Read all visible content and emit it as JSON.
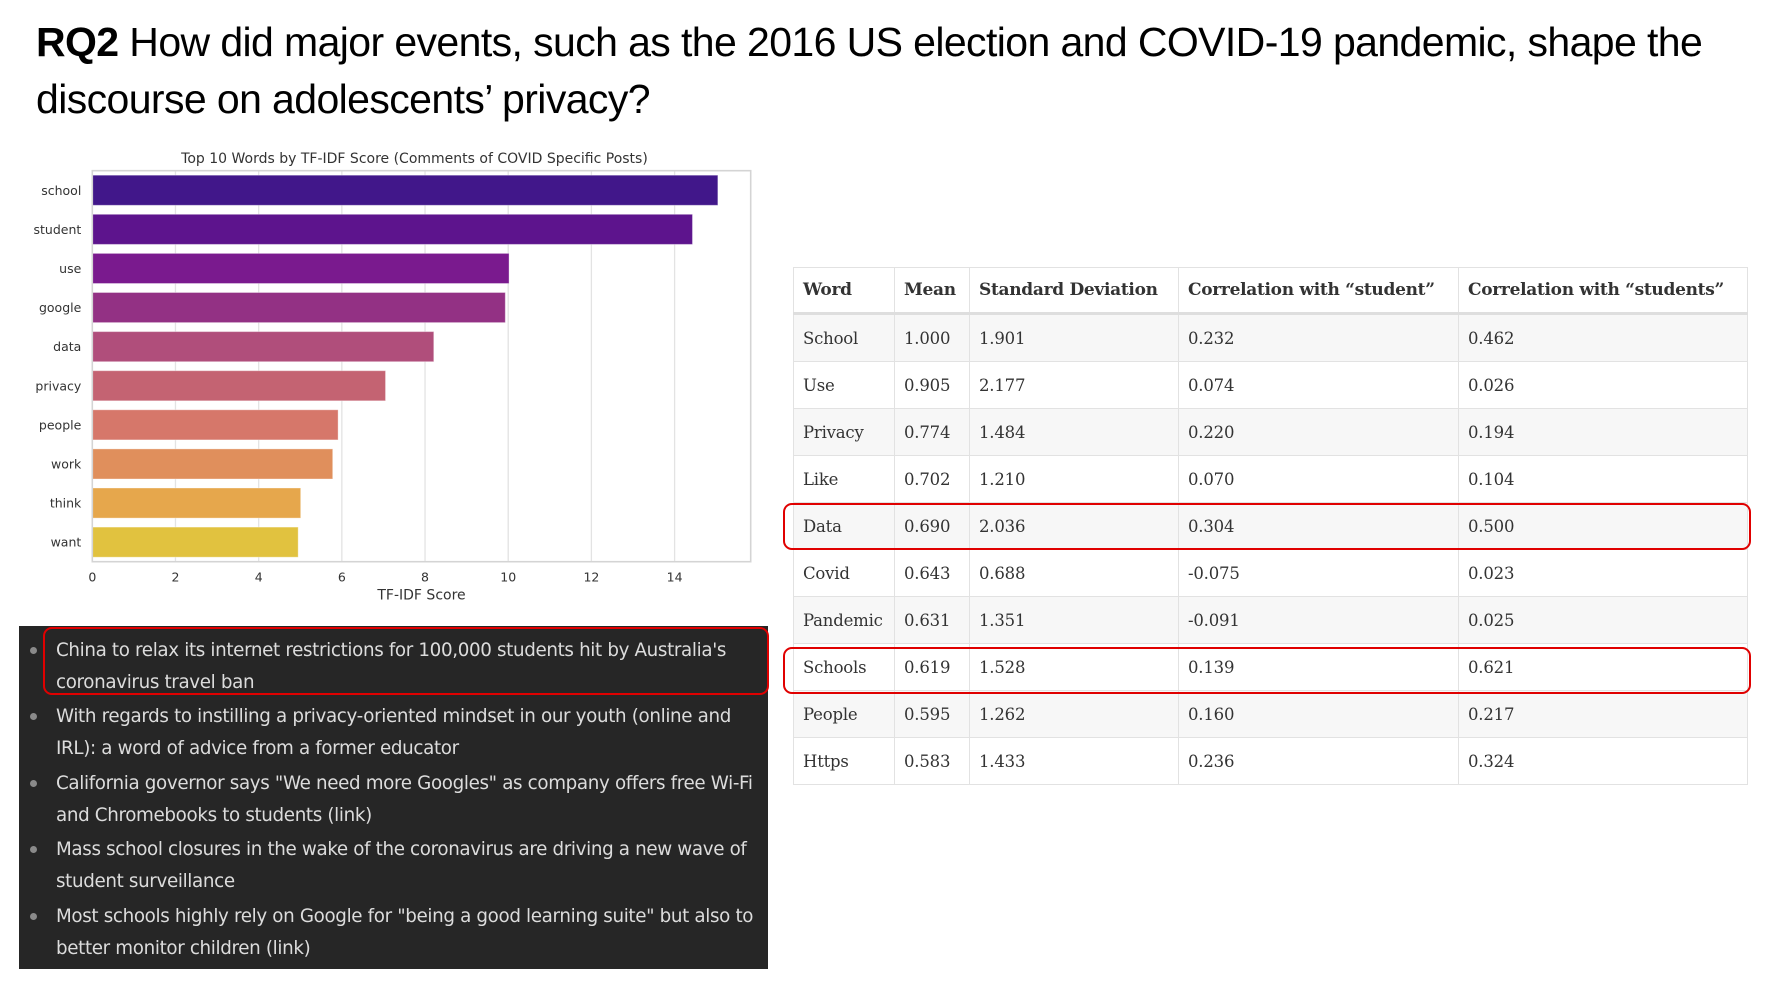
{
  "slide": {
    "title_prefix": "RQ2",
    "title_text": " How did major events, such as the 2016 US election and COVID-19 pandemic, shape the discourse on adolescents’ privacy?"
  },
  "chart_data": {
    "type": "bar",
    "orientation": "horizontal",
    "title": "Top 10 Words by TF-IDF Score (Comments of COVID Specific Posts)",
    "xlabel": "TF-IDF Score",
    "ylabel": "",
    "categories": [
      "school",
      "student",
      "use",
      "google",
      "data",
      "privacy",
      "people",
      "work",
      "think",
      "want"
    ],
    "values": [
      15.04,
      14.43,
      10.02,
      9.93,
      8.21,
      7.05,
      5.91,
      5.78,
      5.01,
      4.95
    ],
    "colors": [
      "#41178a",
      "#5d148d",
      "#7a1a8e",
      "#933184",
      "#b04e7b",
      "#c46372",
      "#d6776a",
      "#e08f5c",
      "#e6a74c",
      "#e1c23f"
    ],
    "xlim": [
      0,
      15.83
    ],
    "xticks": [
      0,
      2,
      4,
      6,
      8,
      10,
      12,
      14
    ],
    "grid": true,
    "legend": "none"
  },
  "table": {
    "headers": [
      "Word",
      "Mean",
      "Standard Deviation",
      "Correlation with “student”",
      "Correlation with “students”"
    ],
    "rows": [
      [
        "School",
        "1.000",
        "1.901",
        "0.232",
        "0.462"
      ],
      [
        "Use",
        "0.905",
        "2.177",
        "0.074",
        "0.026"
      ],
      [
        "Privacy",
        "0.774",
        "1.484",
        "0.220",
        "0.194"
      ],
      [
        "Like",
        "0.702",
        "1.210",
        "0.070",
        "0.104"
      ],
      [
        "Data",
        "0.690",
        "2.036",
        "0.304",
        "0.500"
      ],
      [
        "Covid",
        "0.643",
        "0.688",
        "-0.075",
        "0.023"
      ],
      [
        "Pandemic",
        "0.631",
        "1.351",
        "-0.091",
        "0.025"
      ],
      [
        "Schools",
        "0.619",
        "1.528",
        "0.139",
        "0.621"
      ],
      [
        "People",
        "0.595",
        "1.262",
        "0.160",
        "0.217"
      ],
      [
        "Https",
        "0.583",
        "1.433",
        "0.236",
        "0.324"
      ]
    ],
    "highlighted_rows": [
      "Data",
      "Schools"
    ],
    "highlight_color": "#e00000"
  },
  "posts": {
    "items": [
      "China to relax its internet restrictions for 100,000 students hit by Australia's coronavirus travel ban",
      "With regards to instilling a privacy-oriented mindset in our youth (online and IRL): a word of advice from a former educator",
      "California governor says \"We need more Googles\" as company offers free Wi-Fi and Chromebooks to students (link)",
      "Mass school closures in the wake of the coronavirus are driving a new wave of student surveillance",
      "Most schools highly rely on Google for \"being a good learning suite\" but also to better monitor children (link)"
    ],
    "highlighted_index": 0,
    "panel_color": "#262626"
  }
}
